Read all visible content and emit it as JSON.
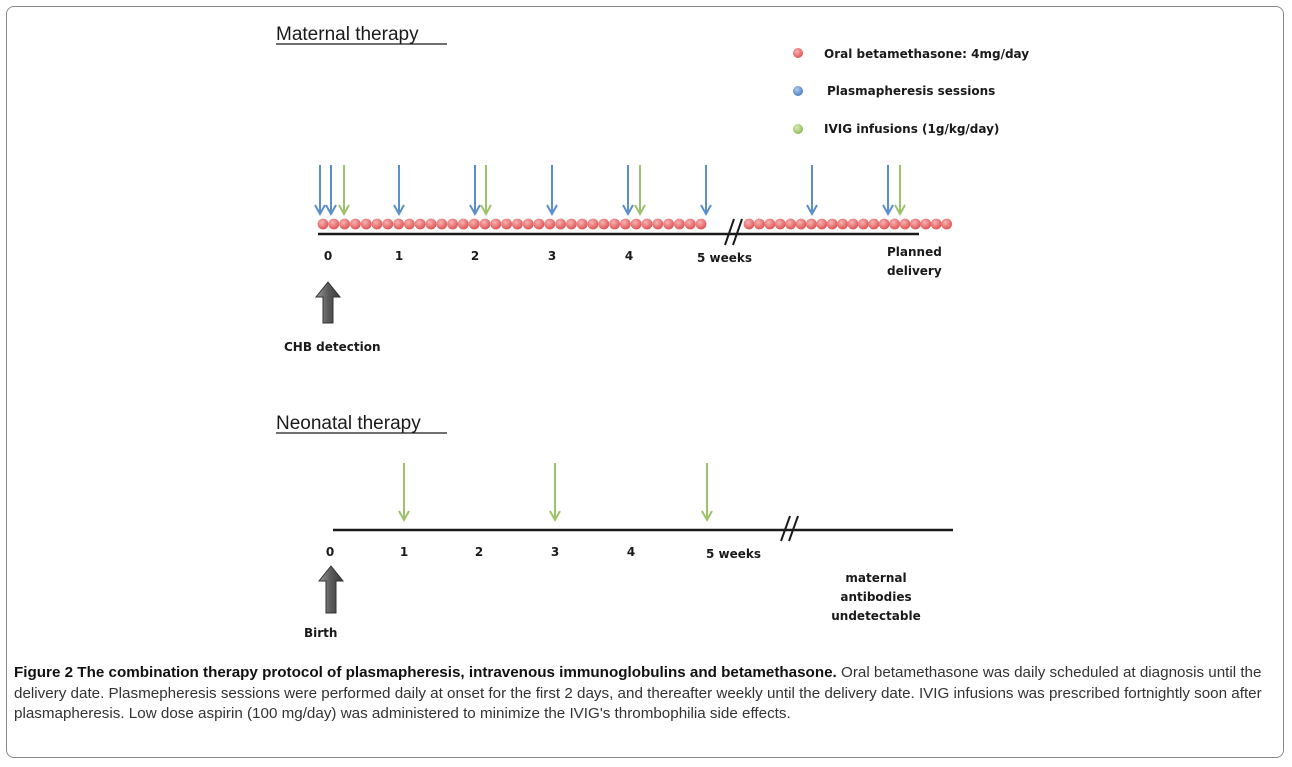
{
  "maternal": {
    "heading": "Maternal therapy",
    "legend": [
      {
        "label": "Oral betamethasone: 4mg/day",
        "color": "#e86a6a"
      },
      {
        "label": "Plasmapheresis sessions",
        "color": "#5b8fcc"
      },
      {
        "label": "IVIG infusions (1g/kg/day)",
        "color": "#9dc26b"
      }
    ],
    "ticks": [
      "0",
      "1",
      "2",
      "3",
      "4",
      "5 weeks"
    ],
    "end_label": [
      "Planned",
      "delivery"
    ],
    "start_label": "CHB detection",
    "dose_count": 56
  },
  "neonatal": {
    "heading": "Neonatal therapy",
    "ticks": [
      "0",
      "1",
      "2",
      "3",
      "4",
      "5 weeks"
    ],
    "end_label": [
      "maternal",
      "antibodies",
      "undetectable"
    ],
    "start_label": "Birth"
  },
  "colors": {
    "betamethasone": "#e86a6a",
    "plasmapheresis": "#5b8fcc",
    "ivig": "#9dc26b",
    "start_arrow": "#6b6b6b"
  },
  "caption": {
    "label": "Figure 2 The combination therapy protocol of plasmapheresis, intravenous immunoglobulins and betamethasone.",
    "text": " Oral betamethasone was daily scheduled at diagnosis until the delivery date. Plasmepheresis sessions were performed daily at onset for the first 2 days, and thereafter weekly until the delivery date. IVIG infusions was prescribed fortnightly soon after plasmapheresis. Low dose aspirin (100 mg/day) was administered to minimize the IVIG's thrombophilia side effects."
  }
}
